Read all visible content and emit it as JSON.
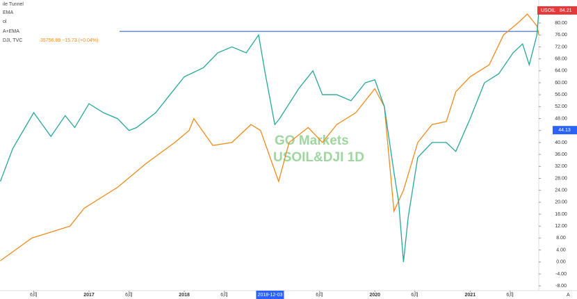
{
  "chart_data": {
    "type": "line",
    "legend": [
      "ile Tunnel",
      "EMA",
      "ol",
      "A+EMA"
    ],
    "legend_main": "DJI, TVC",
    "legend_values": "35756.89 −15.73 (+0.04%)",
    "watermark": [
      "GO Markets",
      "USOIL&DJI 1D"
    ],
    "last_label": {
      "name": "USOIL",
      "value": 84.21
    },
    "other_label": 44.13,
    "hline": 77.2,
    "corner_label": "A",
    "crosshair_date": "2018-12-03",
    "xlim": [
      2016.066,
      2021.72
    ],
    "ylim": [
      -9.6,
      87.7
    ],
    "xticks": [
      {
        "value": 2016.42,
        "label": "6月"
      },
      {
        "value": 2017.0,
        "label": "2017"
      },
      {
        "value": 2017.42,
        "label": "6月"
      },
      {
        "value": 2018.0,
        "label": "2018"
      },
      {
        "value": 2018.42,
        "label": "6月"
      },
      {
        "value": 2019.42,
        "label": "6月"
      },
      {
        "value": 2020.0,
        "label": "2020"
      },
      {
        "value": 2020.42,
        "label": "6月"
      },
      {
        "value": 2021.0,
        "label": "2021"
      },
      {
        "value": 2021.42,
        "label": "6月"
      }
    ],
    "crosshair_x": 2018.9,
    "yticks": [
      {
        "value": 80,
        "label": "80.00"
      },
      {
        "value": 76,
        "label": "76.00"
      },
      {
        "value": 72,
        "label": "72.00"
      },
      {
        "value": 68,
        "label": "68.00"
      },
      {
        "value": 64,
        "label": "64.00"
      },
      {
        "value": 60,
        "label": "60.00"
      },
      {
        "value": 56,
        "label": "56.00"
      },
      {
        "value": 52,
        "label": "52.00"
      },
      {
        "value": 48,
        "label": "48.00"
      },
      {
        "value": 44,
        "label": "44.00"
      },
      {
        "value": 40,
        "label": "40.00"
      },
      {
        "value": 36,
        "label": "36.00"
      },
      {
        "value": 32,
        "label": "32.00"
      },
      {
        "value": 28,
        "label": "28.00"
      },
      {
        "value": 24,
        "label": "24.00"
      },
      {
        "value": 20,
        "label": "20.00"
      },
      {
        "value": 16,
        "label": "16.00"
      },
      {
        "value": 12,
        "label": "12.00"
      },
      {
        "value": 8,
        "label": "8.00"
      },
      {
        "value": 4,
        "label": "4.00"
      },
      {
        "value": 0,
        "label": "0.00"
      },
      {
        "value": -4,
        "label": "-4.00"
      },
      {
        "value": -8,
        "label": "-8.00"
      }
    ],
    "series": [
      {
        "name": "USOIL",
        "color": "#26a69a",
        "x": [
          2016.07,
          2016.2,
          2016.42,
          2016.6,
          2016.75,
          2016.85,
          2017.0,
          2017.15,
          2017.3,
          2017.42,
          2017.5,
          2017.7,
          2017.85,
          2018.0,
          2018.2,
          2018.35,
          2018.5,
          2018.65,
          2018.78,
          2018.85,
          2018.95,
          2019.0,
          2019.2,
          2019.35,
          2019.45,
          2019.6,
          2019.75,
          2019.9,
          2020.0,
          2020.1,
          2020.2,
          2020.25,
          2020.3,
          2020.35,
          2020.45,
          2020.6,
          2020.75,
          2020.85,
          2021.0,
          2021.15,
          2021.3,
          2021.45,
          2021.55,
          2021.62,
          2021.7,
          2021.72
        ],
        "values": [
          27,
          38,
          50,
          42,
          49,
          45,
          53,
          50,
          48,
          44,
          45,
          50,
          56,
          62,
          65,
          70,
          72,
          70,
          76,
          63,
          46,
          48,
          58,
          64,
          56,
          56,
          54,
          60,
          61,
          52,
          30,
          20,
          0,
          15,
          35,
          40,
          40,
          37,
          48,
          60,
          63,
          70,
          73,
          66,
          76,
          84
        ]
      },
      {
        "name": "DJI",
        "color": "#f08a1c",
        "x": [
          2016.07,
          2016.4,
          2016.8,
          2016.95,
          2017.3,
          2017.6,
          2017.9,
          2018.05,
          2018.1,
          2018.3,
          2018.5,
          2018.7,
          2018.8,
          2018.9,
          2018.99,
          2019.1,
          2019.3,
          2019.45,
          2019.6,
          2019.8,
          2020.0,
          2020.1,
          2020.2,
          2020.3,
          2020.45,
          2020.6,
          2020.75,
          2020.85,
          2021.0,
          2021.2,
          2021.35,
          2021.5,
          2021.6,
          2021.7,
          2021.72
        ],
        "values": [
          0.4,
          8,
          12,
          18,
          25,
          33,
          40,
          44,
          48,
          39,
          40,
          46,
          44,
          35,
          27,
          40,
          45,
          40,
          46,
          50,
          58,
          52,
          17,
          24,
          40,
          46,
          47,
          57,
          62,
          66,
          76,
          80,
          83,
          79,
          76
        ]
      }
    ]
  }
}
